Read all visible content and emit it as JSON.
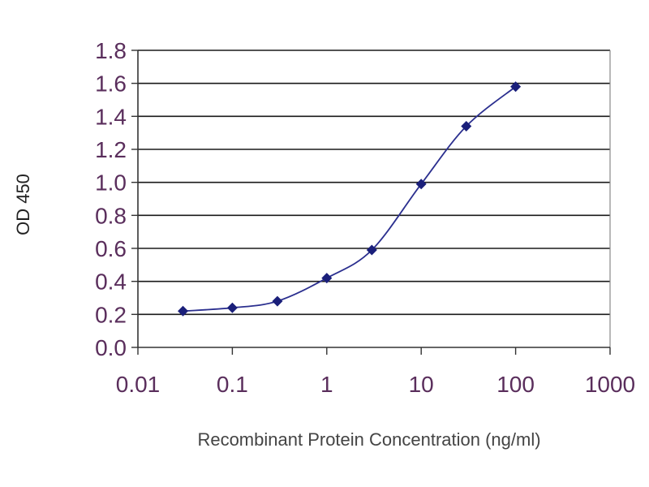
{
  "chart_data": {
    "type": "line",
    "title": "",
    "xlabel": "Recombinant Protein Concentration (ng/ml)",
    "ylabel": "OD 450",
    "x_scale": "log",
    "xlim": [
      0.01,
      1000
    ],
    "ylim": [
      0,
      1.8
    ],
    "x_ticks": [
      0.01,
      0.1,
      1,
      10,
      100,
      1000
    ],
    "x_tick_labels": [
      "0.01",
      "0.1",
      "1",
      "10",
      "100",
      "1000"
    ],
    "y_ticks": [
      0,
      0.2,
      0.4,
      0.6,
      0.8,
      1.0,
      1.2,
      1.4,
      1.6,
      1.8
    ],
    "y_tick_labels": [
      "0.0",
      "0.2",
      "0.4",
      "0.6",
      "0.8",
      "1.0",
      "1.2",
      "1.4",
      "1.6",
      "1.8"
    ],
    "grid": "horizontal",
    "legend": "none",
    "series": [
      {
        "x": [
          0.03,
          0.1,
          0.3,
          1,
          3,
          10,
          30,
          100
        ],
        "y": [
          0.22,
          0.24,
          0.28,
          0.42,
          0.59,
          0.99,
          1.34,
          1.58
        ]
      }
    ],
    "colors": {
      "line": "#2b2f8f",
      "marker": "#1a1f7a",
      "grid": "#1a1a1a",
      "axis": "#333333"
    }
  }
}
